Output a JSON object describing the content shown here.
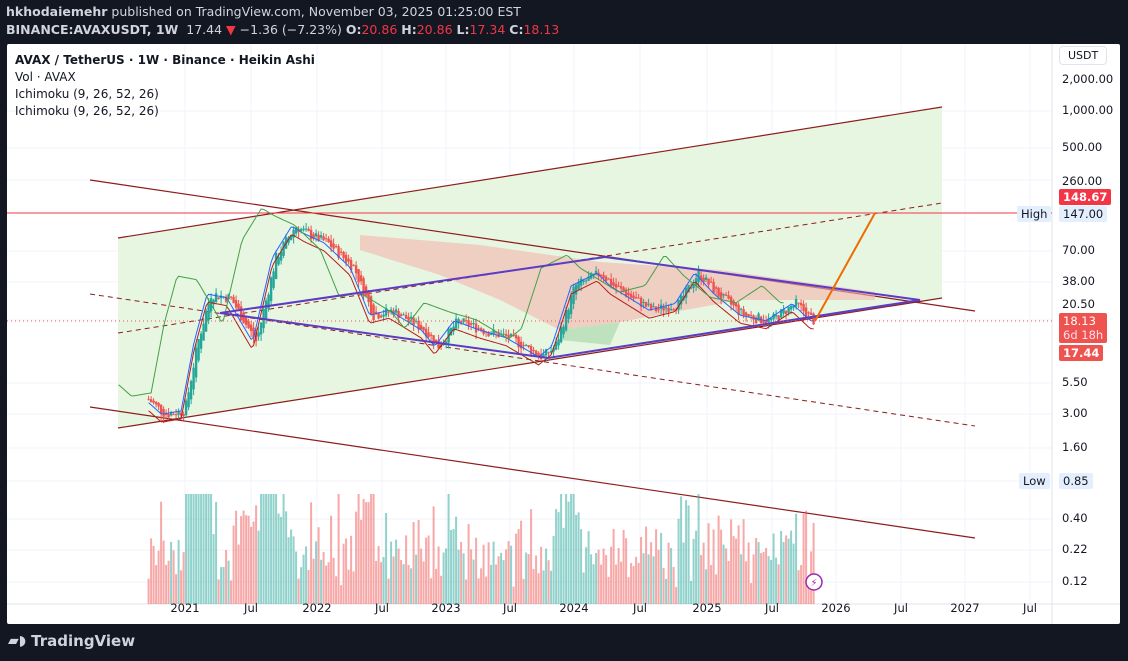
{
  "header": {
    "author": "hkhodaiemehr",
    "published": "published on TradingView.com, November 03, 2025 01:25:00 EST",
    "symbol": "BINANCE:AVAXUSDT, 1W",
    "last": "17.44",
    "change": "−1.36 (−7.23%)",
    "o_label": "O:",
    "o": "20.86",
    "h_label": "H:",
    "h": "20.86",
    "l_label": "L:",
    "l": "17.34",
    "c_label": "C:",
    "c": "18.13"
  },
  "legend": {
    "title": "AVAX / TetherUS · 1W · Binance · Heikin Ashi",
    "volume": "Vol · AVAX",
    "ichimoku1": "Ichimoku (9, 26, 52, 26)",
    "ichimoku2": "Ichimoku (9, 26, 52, 26)"
  },
  "currency_button": "USDT",
  "price_axis": [
    "2,000.00",
    "1,000.00",
    "500.00",
    "260.00",
    "70.00",
    "38.00",
    "20.50",
    "5.50",
    "3.00",
    "1.60",
    "0.40",
    "0.22",
    "0.12"
  ],
  "price_tags": {
    "target": "148.67",
    "high_label": "High",
    "high": "147.00",
    "low_label": "Low",
    "low": "0.85",
    "close": "18.13",
    "countdown": "6d 18h",
    "last": "17.44"
  },
  "time_axis": [
    "2021",
    "Jul",
    "2022",
    "Jul",
    "2023",
    "Jul",
    "2024",
    "Jul",
    "2025",
    "Jul",
    "2026",
    "Jul",
    "2027",
    "Jul"
  ],
  "colors": {
    "up": "#26a69a",
    "down": "#ef5350",
    "red_tag": "#f23645",
    "channel_fill": "#e3f4dc",
    "trend": "#8e1c1c",
    "triangle": "#5b3cc4",
    "target": "#ef6c00"
  },
  "footer": {
    "brand": "TradingView"
  }
}
